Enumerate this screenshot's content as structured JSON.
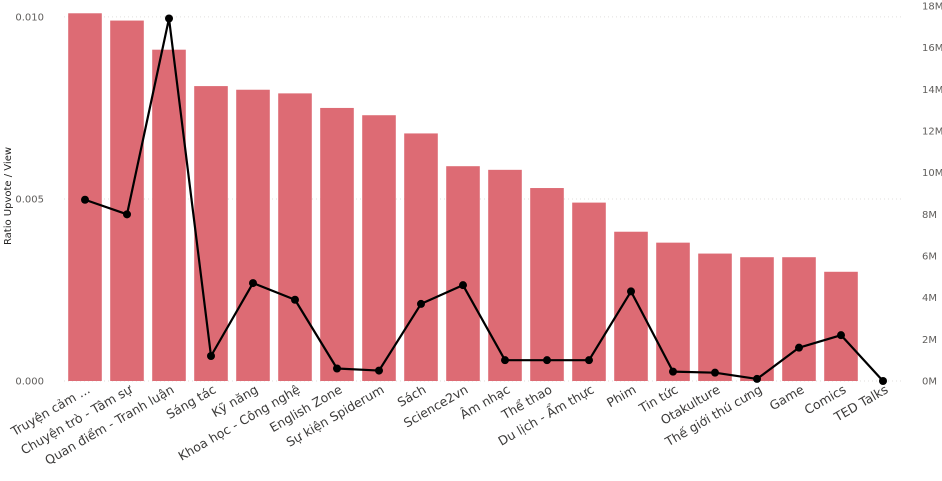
{
  "chart_data": {
    "type": "bar",
    "title": "",
    "xlabel": "",
    "ylabel": "Ratio Upvote / View",
    "categories": [
      "Truyện cảm ...",
      "Chuyện trò - Tâm sự",
      "Quan điểm - Tranh luận",
      "Sáng tác",
      "Kỹ năng",
      "Khoa học - Công nghệ",
      "English Zone",
      "Sự kiện Spiderum",
      "Sách",
      "Science2vn",
      "Âm nhạc",
      "Thể thao",
      "Du lịch - Ẩm thực",
      "Phim",
      "Tin tức",
      "Otakulture",
      "Thế giới thú cưng",
      "Game",
      "Comics",
      "TED Talks"
    ],
    "series": [
      {
        "type": "bar",
        "axis": "left",
        "color": "#dd6b74",
        "values": [
          0.0101,
          0.0099,
          0.0091,
          0.0081,
          0.008,
          0.0079,
          0.0075,
          0.0073,
          0.0068,
          0.0059,
          0.0058,
          0.0053,
          0.0049,
          0.0041,
          0.0038,
          0.0035,
          0.0034,
          0.0034,
          0.003,
          0
        ]
      },
      {
        "type": "line",
        "axis": "right",
        "color": "#000000",
        "values": [
          8700000,
          8000000,
          17400000,
          1200000,
          4700000,
          3900000,
          600000,
          500000,
          3700000,
          4600000,
          1000000,
          1000000,
          1000000,
          4300000,
          450000,
          400000,
          100000,
          1600000,
          2200000,
          0
        ]
      }
    ],
    "y_left": {
      "ylim": [
        0,
        0.0103
      ],
      "ticks": [
        "0.000",
        "0.005",
        "0.010"
      ],
      "tick_values": [
        0,
        0.005,
        0.01
      ]
    },
    "y_right": {
      "ylim": [
        0,
        18000000
      ],
      "ticks": [
        "0M",
        "2M",
        "4M",
        "6M",
        "8M",
        "10M",
        "12M",
        "14M",
        "16M",
        "18M"
      ],
      "tick_values": [
        0,
        2000000,
        4000000,
        6000000,
        8000000,
        10000000,
        12000000,
        14000000,
        16000000,
        18000000
      ]
    },
    "grid": true,
    "legend": "none"
  }
}
